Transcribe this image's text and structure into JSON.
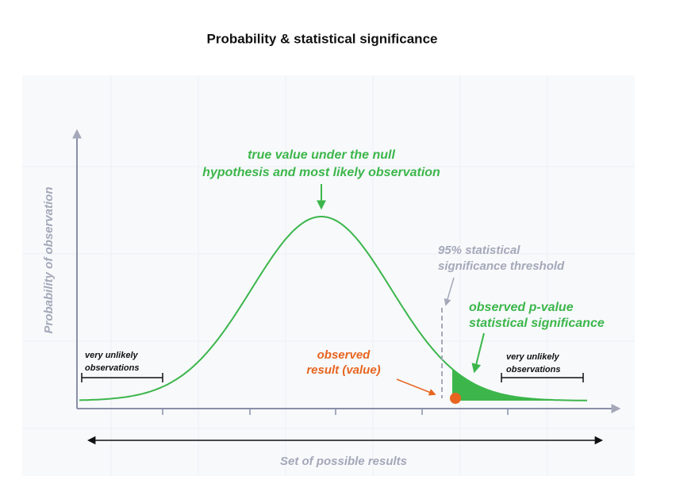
{
  "title": "Probability & statistical significance",
  "y_axis_label": "Probability of observation",
  "x_axis_label": "Set of possible results",
  "annotations": {
    "null_hypothesis": [
      "true value under the null",
      "hypothesis and most likely observation"
    ],
    "threshold": [
      "95% statistical",
      "significance threshold"
    ],
    "p_value": [
      "observed p-value",
      "statistical significance"
    ],
    "observed": [
      "observed",
      "result (value)"
    ],
    "unlikely_left": [
      "very unlikely",
      "observations"
    ],
    "unlikely_right": [
      "very unlikely",
      "observations"
    ]
  }
}
